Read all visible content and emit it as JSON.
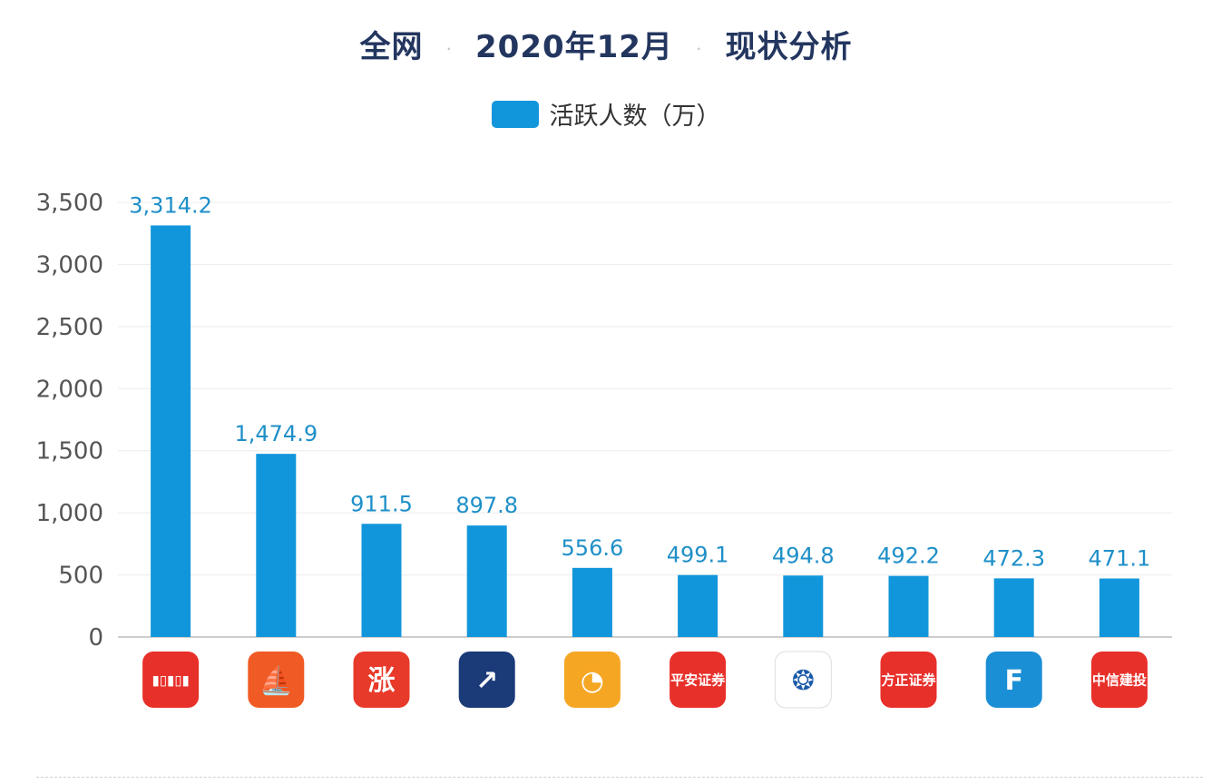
{
  "title": {
    "part1": "全网",
    "part2": "2020年12月",
    "part3": "现状分析",
    "separator": "·"
  },
  "legend": {
    "label": "活跃人数（万）",
    "color": "#1296db"
  },
  "chart_data": {
    "type": "bar",
    "title": "全网 2020年12月 现状分析",
    "xlabel": "",
    "ylabel": "",
    "ylim": [
      0,
      3500
    ],
    "yticks": [
      0,
      500,
      1000,
      1500,
      2000,
      2500,
      3000,
      3500
    ],
    "ytick_labels": [
      "0",
      "500",
      "1,000",
      "1,500",
      "2,000",
      "2,500",
      "3,000",
      "3,500"
    ],
    "grid": true,
    "legend_position": "top-center",
    "series": [
      {
        "name": "活跃人数（万）",
        "color": "#1296db",
        "values": [
          3314.2,
          1474.9,
          911.5,
          897.8,
          556.6,
          499.1,
          494.8,
          492.2,
          472.3,
          471.1
        ],
        "value_labels": [
          "3,314.2",
          "1,474.9",
          "911.5",
          "897.8",
          "556.6",
          "499.1",
          "494.8",
          "492.2",
          "472.3",
          "471.1"
        ]
      }
    ],
    "categories": [
      {
        "icon": "candlestick-app-icon",
        "bg": "#e8302a",
        "glyph": "▮▯▮▯▮"
      },
      {
        "icon": "sail-app-icon",
        "bg": "#f05a24",
        "glyph": "⛵"
      },
      {
        "icon": "zhang-app-icon",
        "bg": "#e83a2a",
        "glyph": "涨"
      },
      {
        "icon": "trend-arrow-app-icon",
        "bg": "#1a3a78",
        "glyph": "↗"
      },
      {
        "icon": "orange-ring-app-icon",
        "bg": "#f5a623",
        "glyph": "◔"
      },
      {
        "icon": "pingan-securities-app-icon",
        "bg": "#e8302a",
        "glyph": "平安证券"
      },
      {
        "icon": "blue-globe-app-icon",
        "bg": "#ffffff",
        "glyph": "❂"
      },
      {
        "icon": "fangzheng-securities-app-icon",
        "bg": "#e8302a",
        "glyph": "方正证券"
      },
      {
        "icon": "blue-f-app-icon",
        "bg": "#1b8fd6",
        "glyph": "F"
      },
      {
        "icon": "china-securities-app-icon",
        "bg": "#e8302a",
        "glyph": "中信建投"
      }
    ]
  }
}
